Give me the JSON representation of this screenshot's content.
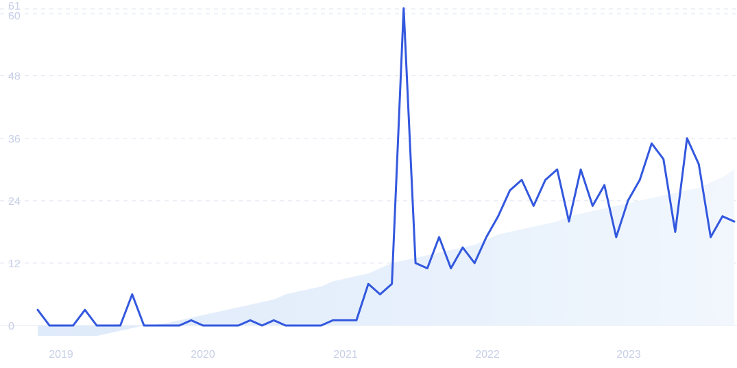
{
  "chart_data": {
    "type": "line",
    "title": "",
    "xlabel": "",
    "ylabel": "",
    "ylim": [
      0,
      61
    ],
    "y_ticks": [
      0,
      12,
      24,
      36,
      48,
      60,
      61
    ],
    "x_tick_labels": [
      "2019",
      "2020",
      "2021",
      "2022",
      "2023"
    ],
    "grid": true,
    "colors": {
      "line": "#3358de",
      "trend_fill": "#e8f1fc",
      "grid": "#dde3ef",
      "tick": "#c7cfe6"
    },
    "series": [
      {
        "values": [
          3,
          0,
          0,
          0,
          3,
          0,
          0,
          0,
          6,
          0,
          0,
          0,
          0,
          1,
          0,
          0,
          0,
          0,
          1,
          0,
          1,
          0,
          0,
          0,
          0,
          1,
          1,
          1,
          8,
          6,
          8,
          61,
          12,
          11,
          17,
          11,
          15,
          12,
          17,
          21,
          26,
          28,
          23,
          28,
          30,
          20,
          30,
          23,
          27,
          17,
          24,
          28,
          35,
          32,
          18,
          36,
          31,
          17,
          21,
          20
        ]
      }
    ],
    "trend": {
      "values": [
        -2,
        -2,
        -2,
        -2,
        -2,
        -2,
        -1.5,
        -1,
        -0.5,
        0,
        0.2,
        0.5,
        1,
        1.5,
        2,
        2.5,
        3,
        3.5,
        4,
        4.5,
        5,
        6,
        6.5,
        7,
        7.5,
        8.5,
        9,
        9.5,
        10,
        11,
        12,
        12.5,
        13,
        13.5,
        14,
        14.5,
        15,
        15.5,
        16.5,
        17.5,
        18,
        18.5,
        19,
        19.5,
        20,
        21,
        21.5,
        22,
        22.5,
        23,
        23.5,
        24,
        24.5,
        25,
        25.5,
        26,
        26.5,
        27.5,
        28.5,
        30
      ]
    }
  }
}
